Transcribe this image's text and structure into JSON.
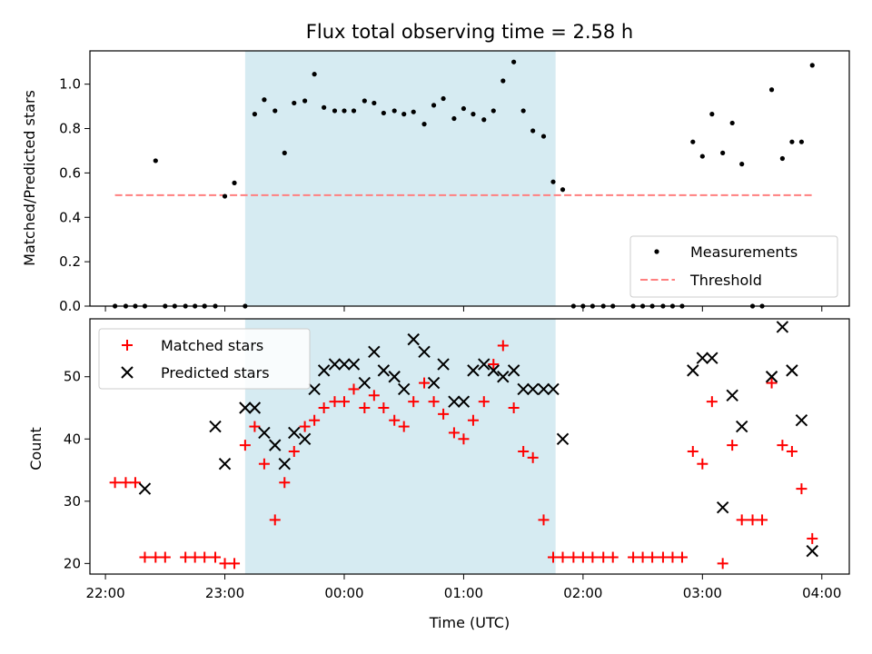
{
  "chart_data": {
    "title": "Flux total observing time = 2.58 h",
    "xlabel": "Time (UTC)",
    "x_ticks": [
      "22:00",
      "23:00",
      "00:00",
      "01:00",
      "02:00",
      "03:00",
      "04:00"
    ],
    "shaded_span": {
      "start": 23.17,
      "end": 25.77,
      "color": "#add8e6"
    },
    "colors": {
      "measurement": "#000000",
      "threshold": "#ff7f7f",
      "matched": "#ff0000",
      "predicted": "#000000",
      "shade": "#add8e6"
    },
    "panels": [
      {
        "type": "scatter",
        "ylabel": "Matched/Predicted stars",
        "xlim": [
          21.87,
          28.23
        ],
        "ylim": [
          0,
          1.15
        ],
        "y_ticks": [
          "0.0",
          "0.2",
          "0.4",
          "0.6",
          "0.8",
          "1.0"
        ],
        "legend_position": "lower-right",
        "series": [
          {
            "name": "Measurements",
            "marker": "dot",
            "x": [
              22.08,
              22.17,
              22.25,
              22.42,
              22.5,
              22.58,
              22.75,
              22.83,
              22.92,
              23.0,
              23.08,
              23.17,
              23.25,
              23.33,
              23.42,
              23.5,
              23.58,
              23.67,
              23.75,
              23.83,
              23.92,
              24.0,
              24.08,
              24.17,
              24.25,
              24.33,
              24.42,
              24.5,
              24.58,
              24.67,
              24.75,
              24.83,
              24.92,
              25.0,
              25.08,
              25.17,
              25.25,
              25.33,
              25.42,
              25.5,
              25.58,
              25.67,
              25.75,
              25.83,
              25.92,
              26.0,
              26.08,
              26.17,
              26.25,
              26.42,
              26.5,
              26.58,
              26.67,
              26.75,
              26.83,
              26.92,
              27.0,
              27.08,
              27.17,
              27.25,
              27.33,
              27.42,
              27.5,
              27.58,
              27.67,
              27.75,
              27.83,
              27.92,
              22.33,
              22.67,
              22.83
            ],
            "y": [
              0,
              0,
              0,
              0.655,
              0,
              0,
              0,
              0,
              0,
              0.495,
              0.555,
              0,
              0.865,
              0.93,
              0.88,
              0.69,
              0.915,
              0.925,
              1.045,
              0.895,
              0.88,
              0.88,
              0.88,
              0.925,
              0.915,
              0.87,
              0.88,
              0.865,
              0.875,
              0.82,
              0.905,
              0.935,
              0.845,
              0.89,
              0.865,
              0.84,
              0.88,
              1.015,
              1.1,
              0.88,
              0.79,
              0.765,
              0.56,
              0.525,
              0,
              0,
              0,
              0,
              0,
              0,
              0,
              0,
              0,
              0,
              0,
              0.74,
              0.675,
              0.865,
              0.69,
              0.825,
              0.64,
              0,
              0,
              0.975,
              0.665,
              0.74,
              0.74,
              1.085,
              0,
              0,
              0
            ]
          }
        ],
        "lines": [
          {
            "name": "Threshold",
            "style": "dashed",
            "x": [
              22.08,
              27.92
            ],
            "y": [
              0.5,
              0.5
            ]
          }
        ]
      },
      {
        "type": "scatter",
        "ylabel": "Count",
        "xlim": [
          21.87,
          28.23
        ],
        "ylim": [
          18.3,
          59.3
        ],
        "y_ticks": [
          "20",
          "30",
          "40",
          "50"
        ],
        "legend_position": "upper-left",
        "series": [
          {
            "name": "Matched stars",
            "marker": "plus",
            "x": [
              22.08,
              22.17,
              22.25,
              22.33,
              22.42,
              22.5,
              22.67,
              22.75,
              22.83,
              22.92,
              23.0,
              23.08,
              23.17,
              23.25,
              23.33,
              23.42,
              23.5,
              23.58,
              23.67,
              23.75,
              23.83,
              23.92,
              24.0,
              24.08,
              24.17,
              24.25,
              24.33,
              24.42,
              24.5,
              24.58,
              24.67,
              24.75,
              24.83,
              24.92,
              25.0,
              25.08,
              25.17,
              25.25,
              25.33,
              25.42,
              25.5,
              25.58,
              25.67,
              25.75,
              25.83,
              25.92,
              26.0,
              26.08,
              26.17,
              26.25,
              26.42,
              26.5,
              26.58,
              26.67,
              26.75,
              26.83,
              26.92,
              27.0,
              27.08,
              27.17,
              27.25,
              27.33,
              27.42,
              27.5,
              27.58,
              27.67,
              27.75,
              27.83,
              27.92
            ],
            "y": [
              33,
              33,
              33,
              21,
              21,
              21,
              21,
              21,
              21,
              21,
              20,
              20,
              39,
              42,
              36,
              27,
              33,
              38,
              42,
              43,
              45,
              46,
              46,
              48,
              45,
              47,
              45,
              43,
              42,
              46,
              49,
              46,
              44,
              41,
              40,
              43,
              46,
              52,
              55,
              45,
              38,
              37,
              27,
              21,
              21,
              21,
              21,
              21,
              21,
              21,
              21,
              21,
              21,
              21,
              21,
              21,
              38,
              36,
              46,
              20,
              39,
              27,
              27,
              27,
              49,
              39,
              38,
              32,
              24
            ]
          },
          {
            "name": "Predicted stars",
            "marker": "x",
            "x": [
              22.33,
              22.92,
              23.0,
              23.17,
              23.25,
              23.33,
              23.42,
              23.5,
              23.58,
              23.67,
              23.75,
              23.83,
              23.92,
              24.0,
              24.08,
              24.17,
              24.25,
              24.33,
              24.42,
              24.5,
              24.58,
              24.67,
              24.75,
              24.83,
              24.92,
              25.0,
              25.08,
              25.17,
              25.25,
              25.33,
              25.42,
              25.5,
              25.58,
              25.67,
              25.75,
              25.83,
              26.92,
              27.0,
              27.08,
              27.17,
              27.25,
              27.33,
              27.58,
              27.67,
              27.75,
              27.83,
              27.92
            ],
            "y": [
              32,
              42,
              36,
              45,
              45,
              41,
              39,
              36,
              41,
              40,
              48,
              51,
              52,
              52,
              52,
              49,
              54,
              51,
              50,
              48,
              56,
              54,
              49,
              52,
              46,
              46,
              51,
              52,
              51,
              50,
              51,
              48,
              48,
              48,
              48,
              40,
              51,
              53,
              53,
              29,
              47,
              42,
              50,
              58,
              51,
              43,
              22
            ]
          }
        ]
      }
    ]
  },
  "legend": {
    "top": [
      {
        "label": "Measurements"
      },
      {
        "label": "Threshold"
      }
    ],
    "bottom": [
      {
        "label": "Matched stars"
      },
      {
        "label": "Predicted stars"
      }
    ]
  }
}
